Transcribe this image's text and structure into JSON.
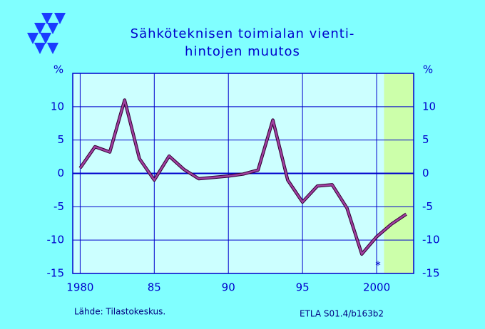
{
  "chart_data": {
    "type": "line",
    "title": [
      "Sähköteknisen  toimialan  vienti-",
      "hintojen  muutos"
    ],
    "ylabel": "%",
    "x": [
      1980,
      1981,
      1982,
      1983,
      1984,
      1985,
      1986,
      1987,
      1988,
      1989,
      1990,
      1991,
      1992,
      1993,
      1994,
      1995,
      1996,
      1997,
      1998,
      1999,
      2000,
      2001,
      2002
    ],
    "series": [
      {
        "color": "#a040a0",
        "values": [
          0.8,
          4.0,
          3.2,
          11.0,
          2.2,
          -1.0,
          2.6,
          0.6,
          -0.8,
          -0.6,
          -0.4,
          -0.1,
          0.5,
          8.0,
          -1.0,
          -4.3,
          -1.9,
          -1.7,
          -5.2,
          -12.1,
          -9.5,
          -7.6,
          -6.1
        ]
      }
    ],
    "xlim": [
      1979.5,
      2002.5
    ],
    "xticks": [
      {
        "value": 1980,
        "label": "1980"
      },
      {
        "value": 1985,
        "label": "85"
      },
      {
        "value": 1990,
        "label": "90"
      },
      {
        "value": 1995,
        "label": "95"
      },
      {
        "value": 2000,
        "label": "2000"
      }
    ],
    "ylim": [
      -15,
      15
    ],
    "yticks": [
      10,
      5,
      0,
      -5,
      -10,
      -15
    ],
    "grid": true,
    "shade_from": 2000.5,
    "note": "*",
    "source": "Lähde:   Tilastokeskus.",
    "code": "ETLA S01.4/b163b2"
  }
}
